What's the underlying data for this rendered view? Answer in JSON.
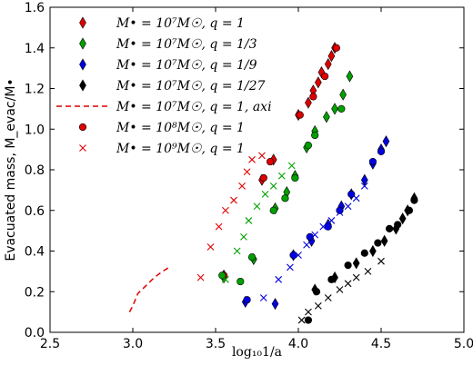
{
  "chart_data": {
    "type": "scatter",
    "xlabel": "log₁₀1/a",
    "ylabel": "Evacuated mass, M_evac/M•",
    "xlim": [
      2.5,
      5.0
    ],
    "ylim": [
      0.0,
      1.6
    ],
    "xticks": [
      "2.5",
      "3.0",
      "3.5",
      "4.0",
      "4.5",
      "5.0"
    ],
    "yticks": [
      "0.0",
      "0.2",
      "0.4",
      "0.6",
      "0.8",
      "1.0",
      "1.2",
      "1.4",
      "1.6"
    ],
    "grid": false,
    "legend_position": "top-left",
    "series": [
      {
        "name": "M• = 10⁷M☉, q = 1",
        "marker": "diamond",
        "color": "#e00000",
        "points": [
          [
            3.55,
            0.28
          ],
          [
            3.78,
            0.75
          ],
          [
            3.85,
            0.85
          ],
          [
            4.0,
            1.07
          ],
          [
            4.06,
            1.13
          ],
          [
            4.09,
            1.19
          ],
          [
            4.12,
            1.23
          ],
          [
            4.14,
            1.28
          ],
          [
            4.18,
            1.32
          ],
          [
            4.2,
            1.36
          ],
          [
            4.22,
            1.4
          ]
        ]
      },
      {
        "name": "M• = 10⁷M☉, q = 1/3",
        "marker": "diamond",
        "color": "#00a000",
        "points": [
          [
            3.55,
            0.27
          ],
          [
            3.73,
            0.36
          ],
          [
            3.86,
            0.61
          ],
          [
            3.93,
            0.69
          ],
          [
            3.98,
            0.77
          ],
          [
            4.05,
            0.91
          ],
          [
            4.1,
            0.99
          ],
          [
            4.17,
            1.06
          ],
          [
            4.22,
            1.1
          ],
          [
            4.27,
            1.17
          ],
          [
            4.31,
            1.26
          ]
        ]
      },
      {
        "name": "M• = 10⁷M☉, q = 1/9",
        "marker": "diamond",
        "color": "#0000e0",
        "points": [
          [
            3.68,
            0.15
          ],
          [
            3.86,
            0.14
          ],
          [
            3.97,
            0.38
          ],
          [
            4.08,
            0.45
          ],
          [
            4.18,
            0.53
          ],
          [
            4.26,
            0.62
          ],
          [
            4.32,
            0.68
          ],
          [
            4.4,
            0.75
          ],
          [
            4.45,
            0.83
          ],
          [
            4.5,
            0.9
          ],
          [
            4.53,
            0.94
          ]
        ]
      },
      {
        "name": "M• = 10⁷M☉, q = 1/27",
        "marker": "diamond",
        "color": "#000000",
        "points": [
          [
            4.1,
            0.21
          ],
          [
            4.22,
            0.27
          ],
          [
            4.35,
            0.34
          ],
          [
            4.45,
            0.4
          ],
          [
            4.52,
            0.45
          ],
          [
            4.59,
            0.51
          ],
          [
            4.63,
            0.56
          ],
          [
            4.66,
            0.6
          ],
          [
            4.7,
            0.66
          ]
        ]
      },
      {
        "name": "M• = 10⁷M☉, q = 1, axi",
        "marker": "dashed-line",
        "color": "#e00000",
        "points": [
          [
            2.98,
            0.1
          ],
          [
            3.0,
            0.13
          ],
          [
            3.03,
            0.19
          ],
          [
            3.08,
            0.23
          ],
          [
            3.13,
            0.27
          ],
          [
            3.18,
            0.3
          ],
          [
            3.22,
            0.32
          ]
        ]
      },
      {
        "name": "M• = 10⁸M☉, q = 1",
        "marker": "circle",
        "color": "multi",
        "groups": [
          {
            "color": "#e00000",
            "points": [
              [
                3.55,
                0.28
              ],
              [
                3.79,
                0.76
              ],
              [
                3.83,
                0.84
              ],
              [
                4.01,
                1.07
              ],
              [
                4.09,
                1.16
              ],
              [
                4.16,
                1.26
              ],
              [
                4.23,
                1.4
              ]
            ]
          },
          {
            "color": "#00a000",
            "points": [
              [
                3.54,
                0.28
              ],
              [
                3.65,
                0.25
              ],
              [
                3.72,
                0.37
              ],
              [
                3.85,
                0.6
              ],
              [
                3.92,
                0.66
              ],
              [
                3.98,
                0.76
              ],
              [
                4.06,
                0.92
              ],
              [
                4.1,
                0.97
              ],
              [
                4.26,
                1.1
              ]
            ]
          },
          {
            "color": "#0000e0",
            "points": [
              [
                3.69,
                0.16
              ],
              [
                3.97,
                0.38
              ],
              [
                4.07,
                0.47
              ],
              [
                4.18,
                0.52
              ],
              [
                4.25,
                0.6
              ],
              [
                4.32,
                0.68
              ],
              [
                4.45,
                0.84
              ],
              [
                4.5,
                0.89
              ]
            ]
          },
          {
            "color": "#000000",
            "points": [
              [
                4.06,
                0.06
              ],
              [
                4.11,
                0.2
              ],
              [
                4.2,
                0.26
              ],
              [
                4.3,
                0.33
              ],
              [
                4.4,
                0.39
              ],
              [
                4.48,
                0.44
              ],
              [
                4.55,
                0.51
              ],
              [
                4.6,
                0.53
              ],
              [
                4.67,
                0.6
              ],
              [
                4.7,
                0.65
              ]
            ]
          }
        ]
      },
      {
        "name": "M• = 10⁹M☉, q = 1",
        "marker": "x",
        "color": "multi",
        "groups": [
          {
            "color": "#e00000",
            "points": [
              [
                3.41,
                0.27
              ],
              [
                3.47,
                0.42
              ],
              [
                3.52,
                0.52
              ],
              [
                3.56,
                0.6
              ],
              [
                3.61,
                0.65
              ],
              [
                3.66,
                0.72
              ],
              [
                3.69,
                0.79
              ],
              [
                3.72,
                0.85
              ],
              [
                3.78,
                0.87
              ]
            ]
          },
          {
            "color": "#00a000",
            "points": [
              [
                3.56,
                0.26
              ],
              [
                3.63,
                0.4
              ],
              [
                3.67,
                0.47
              ],
              [
                3.7,
                0.55
              ],
              [
                3.75,
                0.62
              ],
              [
                3.8,
                0.68
              ],
              [
                3.85,
                0.72
              ],
              [
                3.9,
                0.77
              ],
              [
                3.96,
                0.82
              ]
            ]
          },
          {
            "color": "#0000e0",
            "points": [
              [
                3.79,
                0.17
              ],
              [
                3.88,
                0.26
              ],
              [
                3.95,
                0.32
              ],
              [
                4.0,
                0.38
              ],
              [
                4.05,
                0.43
              ],
              [
                4.1,
                0.48
              ],
              [
                4.15,
                0.52
              ],
              [
                4.2,
                0.55
              ],
              [
                4.25,
                0.59
              ],
              [
                4.3,
                0.62
              ],
              [
                4.35,
                0.66
              ],
              [
                4.4,
                0.72
              ]
            ]
          },
          {
            "color": "#000000",
            "points": [
              [
                4.02,
                0.06
              ],
              [
                4.06,
                0.1
              ],
              [
                4.12,
                0.13
              ],
              [
                4.18,
                0.17
              ],
              [
                4.25,
                0.21
              ],
              [
                4.3,
                0.24
              ],
              [
                4.35,
                0.27
              ],
              [
                4.42,
                0.3
              ],
              [
                4.5,
                0.35
              ]
            ]
          }
        ]
      }
    ]
  }
}
